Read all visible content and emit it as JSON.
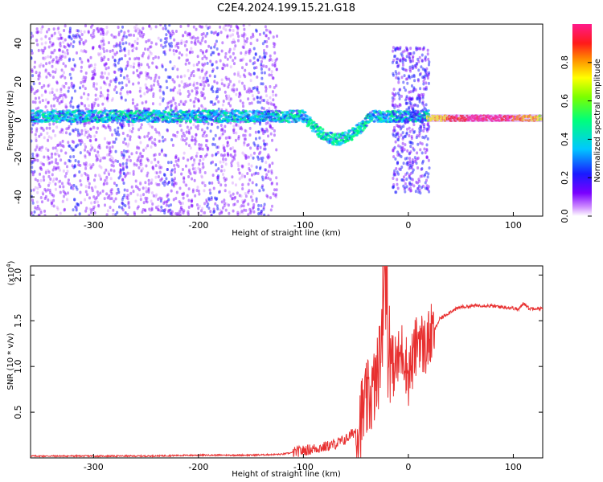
{
  "title": "C2E4.2024.199.15.21.G18",
  "chart_data": [
    {
      "type": "heatmap",
      "xlabel": "Height of straight line (km)",
      "ylabel": "Frequency (Hz)",
      "xlim": [
        -360,
        128
      ],
      "ylim": [
        -50,
        50
      ],
      "xticks": [
        -300,
        -200,
        -100,
        0,
        100
      ],
      "yticks": [
        -40,
        -20,
        0,
        20,
        40
      ],
      "colorbar": {
        "label": "Normalized spectral amplitude",
        "range": [
          0,
          1
        ],
        "ticks": [
          0.0,
          0.2,
          0.4,
          0.6,
          0.8
        ],
        "colormap": "rainbow (white-purple-blue-cyan-green-yellow-red-magenta)"
      },
      "features": [
        {
          "x_range": [
            -360,
            -125
          ],
          "description": "broad noise scatter across all frequencies"
        },
        {
          "x_range": [
            -360,
            20
          ],
          "center_freq": 2,
          "description": "main carrier band near 0 Hz"
        },
        {
          "x_range": [
            -100,
            -35
          ],
          "description": "carrier dips to about -15 Hz"
        },
        {
          "x_range": [
            -15,
            20
          ],
          "description": "vertical spread to +/-35 Hz"
        },
        {
          "x_range": [
            20,
            128
          ],
          "center_freq": 1,
          "description": "strong narrow carrier, high amplitude"
        }
      ]
    },
    {
      "type": "line",
      "xlabel": "Height of straight line (km)",
      "ylabel": "SNR (10 * v/v)",
      "multiplier_label": "(x10",
      "multiplier_exp": "4",
      "multiplier_close": ")",
      "xlim": [
        -360,
        128
      ],
      "ylim": [
        0,
        2.1
      ],
      "xticks": [
        -300,
        -200,
        -100,
        0,
        100
      ],
      "yticks": [
        0.5,
        1.0,
        1.5,
        2.0
      ],
      "ytick_labels": [
        "0.5",
        "1.0",
        "1.5",
        "2.0"
      ],
      "color": "#e83030",
      "series": [
        {
          "x": [
            -360,
            -300,
            -250,
            -200,
            -150,
            -120,
            -100,
            -90,
            -80,
            -70,
            -60,
            -50,
            -45,
            -40,
            -35,
            -30,
            -25,
            -22,
            -20,
            -15,
            -10,
            -5,
            0,
            5,
            10,
            15,
            20,
            25,
            30,
            40,
            50,
            60,
            70,
            80,
            90,
            100,
            105,
            110,
            115,
            120,
            128
          ],
          "values": [
            0.02,
            0.02,
            0.02,
            0.03,
            0.03,
            0.04,
            0.08,
            0.1,
            0.12,
            0.15,
            0.2,
            0.3,
            0.45,
            0.6,
            0.7,
            0.85,
            1.3,
            2.05,
            1.1,
            1.0,
            1.05,
            1.2,
            0.9,
            1.1,
            1.35,
            1.2,
            1.3,
            1.4,
            1.52,
            1.6,
            1.65,
            1.66,
            1.67,
            1.66,
            1.65,
            1.64,
            1.62,
            1.7,
            1.63,
            1.64,
            1.63
          ]
        }
      ]
    }
  ]
}
